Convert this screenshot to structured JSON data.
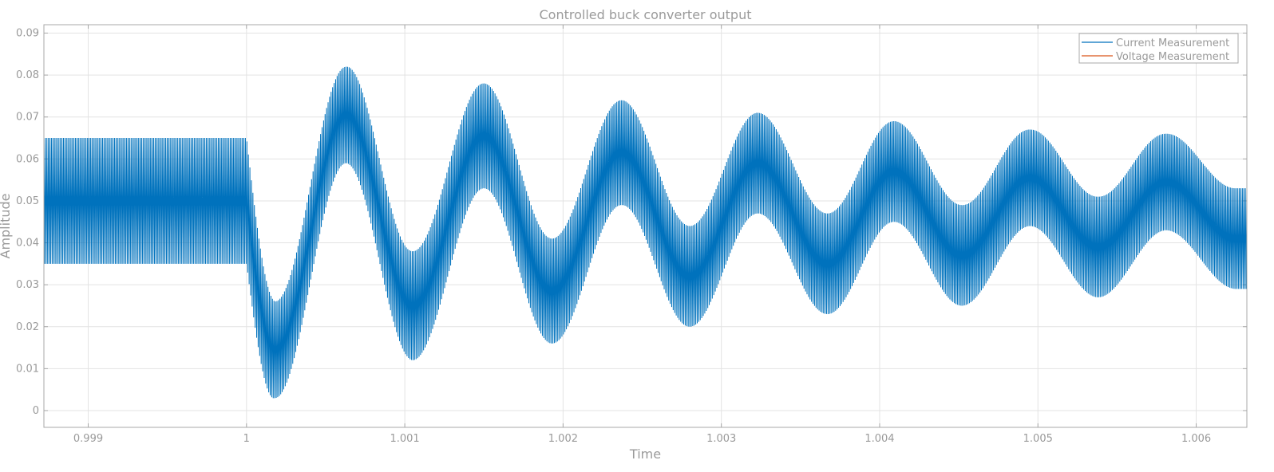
{
  "chart_data": {
    "type": "line",
    "title": "Controlled buck converter output",
    "xlabel": "Time",
    "ylabel": "Amplitude",
    "xlim": [
      0.99872,
      1.00632
    ],
    "ylim": [
      -0.004,
      0.092
    ],
    "xticks": [
      0.999,
      1,
      1.001,
      1.002,
      1.003,
      1.004,
      1.005,
      1.006
    ],
    "xtick_labels": [
      "0.999",
      "1",
      "1.001",
      "1.002",
      "1.003",
      "1.004",
      "1.005",
      "1.006"
    ],
    "yticks": [
      0,
      0.01,
      0.02,
      0.03,
      0.04,
      0.05,
      0.06,
      0.07,
      0.08,
      0.09
    ],
    "ytick_labels": [
      "0",
      "0.01",
      "0.02",
      "0.03",
      "0.04",
      "0.05",
      "0.06",
      "0.07",
      "0.08",
      "0.09"
    ],
    "grid": true,
    "legend_position": "top-right",
    "series": [
      {
        "name": "Current Measurement",
        "color": "#0072BD",
        "description_values": {
          "steady_state_before_t1": {
            "min": 0.035,
            "max": 0.065
          },
          "envelope_extrema": [
            {
              "x": 1.00018,
              "low": 0.003,
              "high": 0.026
            },
            {
              "x": 1.00063,
              "low": 0.059,
              "high": 0.082
            },
            {
              "x": 1.00105,
              "low": 0.012,
              "high": 0.038
            },
            {
              "x": 1.0015,
              "low": 0.053,
              "high": 0.078
            },
            {
              "x": 1.00193,
              "low": 0.016,
              "high": 0.041
            },
            {
              "x": 1.00237,
              "low": 0.049,
              "high": 0.074
            },
            {
              "x": 1.0028,
              "low": 0.02,
              "high": 0.044
            },
            {
              "x": 1.00323,
              "low": 0.047,
              "high": 0.071
            },
            {
              "x": 1.00367,
              "low": 0.023,
              "high": 0.047
            },
            {
              "x": 1.00409,
              "low": 0.045,
              "high": 0.069
            },
            {
              "x": 1.00452,
              "low": 0.025,
              "high": 0.049
            },
            {
              "x": 1.00495,
              "low": 0.044,
              "high": 0.067
            },
            {
              "x": 1.00538,
              "low": 0.027,
              "high": 0.051
            },
            {
              "x": 1.00581,
              "low": 0.043,
              "high": 0.066
            },
            {
              "x": 1.00625,
              "low": 0.029,
              "high": 0.053
            }
          ]
        }
      },
      {
        "name": "Voltage Measurement",
        "color": "#D95319"
      }
    ]
  }
}
